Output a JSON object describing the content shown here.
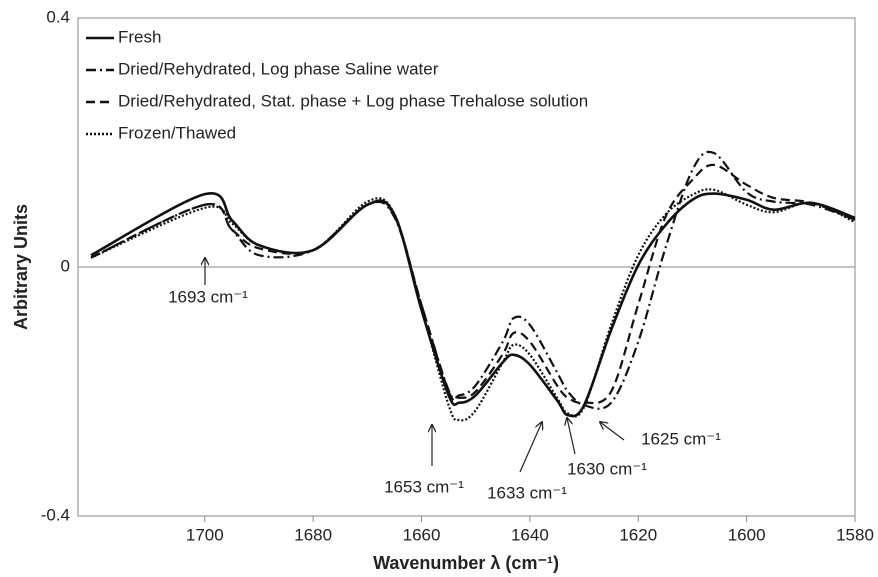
{
  "chart_data": {
    "type": "line",
    "x_label": "Wavenumber λ (cm⁻¹)",
    "y_label": "Arbitrary Units",
    "xlim": [
      1723.4,
      1580
    ],
    "xticks": [
      1700,
      1680,
      1660,
      1640,
      1620,
      1600,
      1580
    ],
    "ylim": [
      -0.4,
      0.4
    ],
    "yticks": [
      -0.4,
      0,
      0.4
    ],
    "legend": "top-left",
    "x": [
      1721,
      1700,
      1695,
      1690,
      1680,
      1670,
      1665,
      1660,
      1655,
      1653,
      1650,
      1645,
      1643,
      1640,
      1635,
      1633,
      1630,
      1625,
      1620,
      1615,
      1610,
      1606,
      1600,
      1595,
      1588,
      1580
    ],
    "series": [
      {
        "name": "Fresh",
        "color": "#111111",
        "dash": "solid",
        "values": [
          0.019,
          0.117,
          0.075,
          0.035,
          0.027,
          0.1,
          0.084,
          -0.069,
          -0.206,
          -0.218,
          -0.206,
          -0.153,
          -0.141,
          -0.157,
          -0.214,
          -0.238,
          -0.222,
          -0.101,
          0.003,
          0.067,
          0.108,
          0.118,
          0.108,
          0.092,
          0.103,
          0.079
        ]
      },
      {
        "name": "Dried/Rehydrated, Log phase Saline water",
        "color": "#111111",
        "dash": "dashdot",
        "values": [
          0.015,
          0.1,
          0.06,
          0.019,
          0.027,
          0.1,
          0.08,
          -0.061,
          -0.198,
          -0.206,
          -0.19,
          -0.12,
          -0.082,
          -0.093,
          -0.169,
          -0.2,
          -0.222,
          -0.218,
          -0.12,
          0.03,
          0.156,
          0.183,
          0.12,
          0.105,
          0.1,
          0.076
        ]
      },
      {
        "name": "Dried/Rehydrated, Stat. phase + Log phase Trehalose solution",
        "color": "#111111",
        "dash": "dashed",
        "values": [
          0.015,
          0.1,
          0.06,
          0.03,
          0.027,
          0.1,
          0.082,
          -0.061,
          -0.2,
          -0.21,
          -0.2,
          -0.14,
          -0.106,
          -0.12,
          -0.19,
          -0.21,
          -0.218,
          -0.2,
          -0.06,
          0.08,
          0.14,
          0.164,
          0.132,
          0.111,
          0.103,
          0.076
        ]
      },
      {
        "name": "Frozen/Thawed",
        "color": "#111111",
        "dash": "dotted",
        "values": [
          0.015,
          0.095,
          0.07,
          0.035,
          0.027,
          0.105,
          0.085,
          -0.066,
          -0.222,
          -0.246,
          -0.23,
          -0.153,
          -0.125,
          -0.141,
          -0.21,
          -0.235,
          -0.225,
          -0.093,
          0.019,
          0.084,
          0.116,
          0.124,
          0.1,
          0.088,
          0.103,
          0.072
        ]
      }
    ],
    "annotations": [
      "1693 cm⁻¹",
      "1653 cm⁻¹",
      "1633 cm⁻¹",
      "1630 cm⁻¹",
      "1625 cm⁻¹"
    ]
  }
}
